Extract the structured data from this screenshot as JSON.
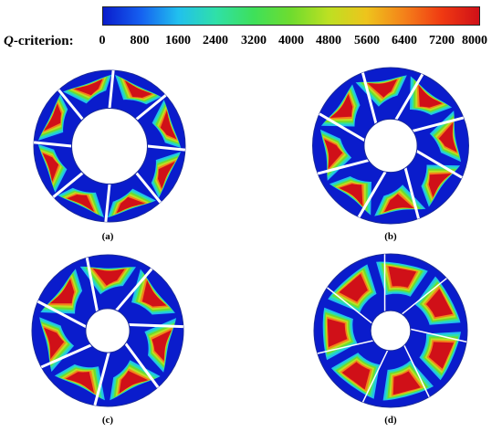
{
  "legend": {
    "variable_name": "Q",
    "variable_suffix": "-criterion:",
    "ticks": [
      "0",
      "800",
      "1600",
      "2400",
      "3200",
      "4000",
      "4800",
      "5600",
      "6400",
      "7200",
      "8000"
    ],
    "colormap": [
      "#0a1ccc",
      "#1560f0",
      "#21c0ee",
      "#2fe0a8",
      "#3ee05a",
      "#6fdc2e",
      "#bde022",
      "#eec41c",
      "#f4821a",
      "#f03a12",
      "#d01018"
    ]
  },
  "panels": [
    {
      "caption": "(a)",
      "blades": 8,
      "hub_ratio": 0.5
    },
    {
      "caption": "(b)",
      "blades": 8,
      "hub_ratio": 0.34
    },
    {
      "caption": "(c)",
      "blades": 7,
      "hub_ratio": 0.29
    },
    {
      "caption": "(d)",
      "blades": 7,
      "hub_ratio": 0.26
    }
  ]
}
